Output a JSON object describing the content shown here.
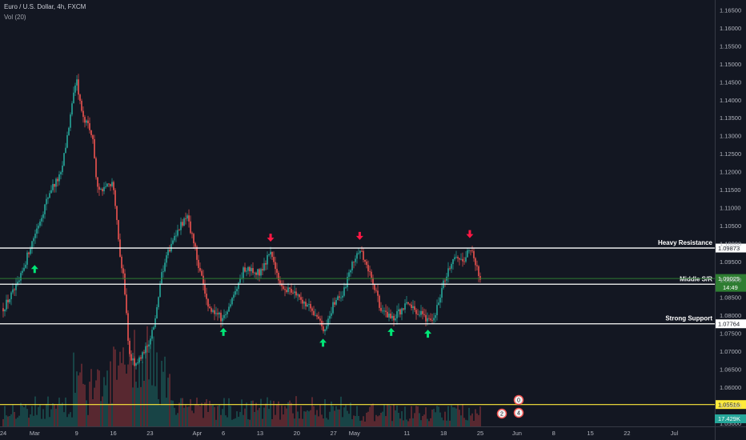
{
  "header": {
    "title": "Euro / U.S. Dollar, 4h, FXCM",
    "indicator": "Vol (20)"
  },
  "colors": {
    "background": "#131722",
    "up": "#26a69a",
    "down": "#ef5350",
    "level_line": "#ffffff",
    "price_line": "#2e7d32",
    "yellow_line": "#ffeb3b",
    "up_arrow": "#00e676",
    "down_arrow": "#ff1744"
  },
  "chart_data": {
    "type": "candlestick",
    "instrument": "Euro / U.S. Dollar",
    "timeframe": "4h",
    "source": "FXCM",
    "ylim": [
      1.0445,
      1.1695
    ],
    "y_ticks": [
      "1.16500",
      "1.16000",
      "1.15500",
      "1.15000",
      "1.14500",
      "1.14000",
      "1.13500",
      "1.13000",
      "1.12500",
      "1.12000",
      "1.11500",
      "1.11000",
      "1.10500",
      "1.10000",
      "1.09500",
      "1.09000",
      "1.08500",
      "1.08000",
      "1.07500",
      "1.07000",
      "1.06500",
      "1.06000",
      "1.05500",
      "1.05000"
    ],
    "x_ticks": [
      "24",
      "Mar",
      "9",
      "16",
      "23",
      "Apr",
      "6",
      "13",
      "20",
      "27",
      "May",
      "11",
      "18",
      "25",
      "Jun",
      "8",
      "15",
      "22",
      "Jul"
    ],
    "price_path": [
      {
        "date": "2020-02-24",
        "close": 1.082
      },
      {
        "date": "2020-02-27",
        "close": 1.089
      },
      {
        "date": "2020-02-29",
        "close": 1.0985
      },
      {
        "date": "2020-03-02",
        "close": 1.1065
      },
      {
        "date": "2020-03-04",
        "close": 1.115
      },
      {
        "date": "2020-03-06",
        "close": 1.119
      },
      {
        "date": "2020-03-09",
        "close": 1.146
      },
      {
        "date": "2020-03-10",
        "close": 1.136
      },
      {
        "date": "2020-03-12",
        "close": 1.13
      },
      {
        "date": "2020-03-13",
        "close": 1.115
      },
      {
        "date": "2020-03-16",
        "close": 1.117
      },
      {
        "date": "2020-03-17",
        "close": 1.1
      },
      {
        "date": "2020-03-18",
        "close": 1.09
      },
      {
        "date": "2020-03-19",
        "close": 1.07
      },
      {
        "date": "2020-03-20",
        "close": 1.066
      },
      {
        "date": "2020-03-23",
        "close": 1.072
      },
      {
        "date": "2020-03-24",
        "close": 1.08
      },
      {
        "date": "2020-03-25",
        "close": 1.09
      },
      {
        "date": "2020-03-27",
        "close": 1.1
      },
      {
        "date": "2020-03-30",
        "close": 1.108
      },
      {
        "date": "2020-04-01",
        "close": 1.096
      },
      {
        "date": "2020-04-03",
        "close": 1.082
      },
      {
        "date": "2020-04-06",
        "close": 1.079
      },
      {
        "date": "2020-04-08",
        "close": 1.086
      },
      {
        "date": "2020-04-10",
        "close": 1.093
      },
      {
        "date": "2020-04-13",
        "close": 1.092
      },
      {
        "date": "2020-04-15",
        "close": 1.098
      },
      {
        "date": "2020-04-17",
        "close": 1.088
      },
      {
        "date": "2020-04-20",
        "close": 1.086
      },
      {
        "date": "2020-04-22",
        "close": 1.083
      },
      {
        "date": "2020-04-24",
        "close": 1.08
      },
      {
        "date": "2020-04-25",
        "close": 1.075
      },
      {
        "date": "2020-04-27",
        "close": 1.083
      },
      {
        "date": "2020-04-29",
        "close": 1.087
      },
      {
        "date": "2020-05-01",
        "close": 1.096
      },
      {
        "date": "2020-05-02",
        "close": 1.0985
      },
      {
        "date": "2020-05-04",
        "close": 1.091
      },
      {
        "date": "2020-05-06",
        "close": 1.082
      },
      {
        "date": "2020-05-08",
        "close": 1.079
      },
      {
        "date": "2020-05-11",
        "close": 1.083
      },
      {
        "date": "2020-05-13",
        "close": 1.081
      },
      {
        "date": "2020-05-14",
        "close": 1.08
      },
      {
        "date": "2020-05-16",
        "close": 1.078
      },
      {
        "date": "2020-05-18",
        "close": 1.089
      },
      {
        "date": "2020-05-20",
        "close": 1.096
      },
      {
        "date": "2020-05-22",
        "close": 1.096
      },
      {
        "date": "2020-05-23",
        "close": 1.099
      },
      {
        "date": "2020-05-25",
        "close": 1.09
      }
    ],
    "levels": [
      {
        "name": "Heavy Resistance",
        "price": 1.09873,
        "price_label": "1.09873",
        "color": "#ffffff"
      },
      {
        "name": "Middle S/R",
        "price": 1.08866,
        "price_label": "1.08866",
        "color": "#ffffff"
      },
      {
        "name": "Strong Support",
        "price": 1.07764,
        "price_label": "1.07764",
        "color": "#ffffff"
      }
    ],
    "last_price": {
      "price": 1.09025,
      "label": "1.09025",
      "countdown": "14:49",
      "color": "#2e7d32"
    },
    "yellow_line": {
      "price": 1.05516,
      "label": "1.05516"
    },
    "volume_last": "17.429K",
    "up_arrows": [
      {
        "date": "2020-03-01",
        "price": 1.094
      },
      {
        "date": "2020-04-06",
        "price": 1.0765
      },
      {
        "date": "2020-04-25",
        "price": 1.0735
      },
      {
        "date": "2020-05-08",
        "price": 1.0765
      },
      {
        "date": "2020-05-15",
        "price": 1.076
      }
    ],
    "down_arrows": [
      {
        "date": "2020-04-15",
        "price": 1.1005
      },
      {
        "date": "2020-05-02",
        "price": 1.101
      },
      {
        "date": "2020-05-23",
        "price": 1.1015
      }
    ],
    "event_badges": [
      "0",
      "2",
      "4"
    ]
  }
}
